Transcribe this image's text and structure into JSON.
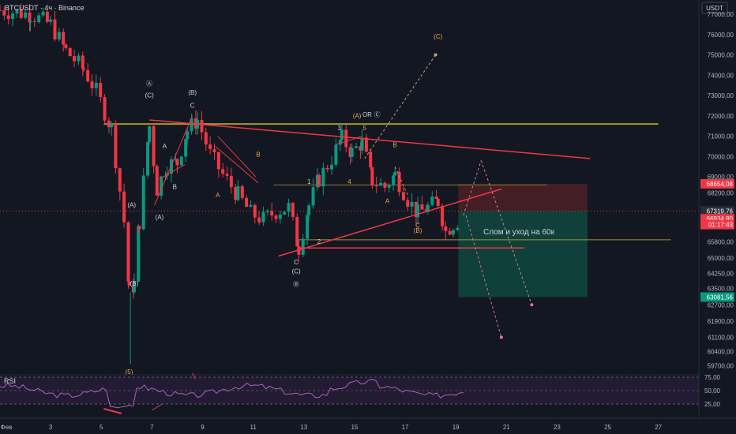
{
  "header": {
    "symbol": "BTCUSDT · 4ч · Binance"
  },
  "price_axis": {
    "currency": "USDT",
    "ticks": [
      "77000,00",
      "76000,00",
      "75000,00",
      "74000,00",
      "73000,00",
      "72000,00",
      "71000,00",
      "70000,00",
      "69000,00",
      "68200,00",
      "65800,00",
      "65000,00",
      "64250,00",
      "63500,00",
      "62700,00",
      "61900,00",
      "61100,00",
      "60400,00",
      "59700,00"
    ],
    "tick_values": [
      77000,
      76000,
      75000,
      74000,
      73000,
      72000,
      71000,
      70000,
      69000,
      68200,
      65800,
      65000,
      64250,
      63500,
      62700,
      61900,
      61100,
      60400,
      59700
    ],
    "badges": [
      {
        "text": "68654,08",
        "value": 68654,
        "color": "#f23645"
      },
      {
        "text": "67319,76",
        "value": 67320,
        "color": "#2a2e39"
      },
      {
        "text": "66934,80",
        "value": 66935,
        "color": "#f23645"
      },
      {
        "text": "01:17:43",
        "value": 66650,
        "color": "#f23645"
      },
      {
        "text": "63081,56",
        "value": 63082,
        "color": "#089981"
      }
    ]
  },
  "time_axis": {
    "labels": [
      "Фев",
      "3",
      "5",
      "7",
      "9",
      "11",
      "13",
      "15",
      "17",
      "19",
      "21",
      "23",
      "25",
      "27"
    ],
    "day_values": [
      1,
      3,
      5,
      7,
      9,
      11,
      13,
      15,
      17,
      19,
      21,
      23,
      25,
      27
    ]
  },
  "rsi": {
    "label": "RSI",
    "ticks": [
      "75,00",
      "50,00",
      "25,00"
    ],
    "tick_values": [
      75,
      50,
      25
    ]
  },
  "wave_labels": [
    {
      "text": "Ⓐ",
      "day": 6.9,
      "price": 73480,
      "color": "#d1d4dc"
    },
    {
      "text": "(C)",
      "day": 6.9,
      "price": 72900,
      "color": "#d1d4dc"
    },
    {
      "text": "(B)",
      "day": 8.6,
      "price": 73050,
      "color": "#d1d4dc"
    },
    {
      "text": "C",
      "day": 8.6,
      "price": 72400,
      "color": "#d1d4dc"
    },
    {
      "text": "A",
      "day": 7.5,
      "price": 70400,
      "color": "#d1d4dc"
    },
    {
      "text": "B",
      "day": 7.9,
      "price": 68400,
      "color": "#d1d4dc"
    },
    {
      "text": "(A)",
      "day": 6.2,
      "price": 67500,
      "color": "#d1d4dc"
    },
    {
      "text": "(A)",
      "day": 7.3,
      "price": 66900,
      "color": "#d1d4dc"
    },
    {
      "text": "(B)",
      "day": 6.3,
      "price": 63650,
      "color": "#d1d4dc"
    },
    {
      "text": "(5)",
      "day": 6.1,
      "price": 59300,
      "color": "#f0a04b"
    },
    {
      "text": "A",
      "day": 9.6,
      "price": 68000,
      "color": "#f0a04b"
    },
    {
      "text": "B",
      "day": 11.2,
      "price": 70000,
      "color": "#f0a04b"
    },
    {
      "text": "C",
      "day": 12.7,
      "price": 64700,
      "color": "#d1d4dc"
    },
    {
      "text": "(C)",
      "day": 12.7,
      "price": 64250,
      "color": "#d1d4dc"
    },
    {
      "text": "Ⓑ",
      "day": 12.7,
      "price": 63600,
      "color": "#d1d4dc"
    },
    {
      "text": "1",
      "day": 13.2,
      "price": 68650,
      "color": "#d1d4dc"
    },
    {
      "text": "2",
      "day": 13.6,
      "price": 65700,
      "color": "#d1d4dc"
    },
    {
      "text": "3",
      "day": 14.4,
      "price": 71300,
      "color": "#d1d4dc"
    },
    {
      "text": "4",
      "day": 14.8,
      "price": 68650,
      "color": "#f0a04b"
    },
    {
      "text": "5",
      "day": 15.4,
      "price": 71300,
      "color": "#f0a04b"
    },
    {
      "text": "(A)",
      "day": 15.1,
      "price": 71900,
      "color": "#f0a04b"
    },
    {
      "text": "OR",
      "day": 15.5,
      "price": 71950,
      "color": "#d1d4dc"
    },
    {
      "text": "Ⓒ",
      "day": 15.9,
      "price": 71950,
      "color": "#d1d4dc"
    },
    {
      "text": "B",
      "day": 16.6,
      "price": 70450,
      "color": "#f0a04b"
    },
    {
      "text": "A",
      "day": 16.3,
      "price": 67700,
      "color": "#f0a04b"
    },
    {
      "text": "C",
      "day": 17.5,
      "price": 66500,
      "color": "#f0a04b"
    },
    {
      "text": "(B)",
      "day": 17.5,
      "price": 66250,
      "color": "#f0a04b"
    },
    {
      "text": "(C)",
      "day": 18.3,
      "price": 75800,
      "color": "#f0a04b"
    }
  ],
  "annotation": {
    "text": "Слом и уход на 60к"
  },
  "colors": {
    "up": "#089981",
    "down": "#f23645",
    "level": "#9c8d1f",
    "trend": "#f23645",
    "tp_zone": "#10453d",
    "sl_zone": "#4a1f26",
    "background": "#131722"
  },
  "chart_data": {
    "type": "candlestick",
    "x_unit": "February day",
    "y_unit": "USDT",
    "xlim": [
      1.0,
      28.6
    ],
    "ylim": [
      59450,
      77700
    ],
    "grid": false,
    "candles_close_approx": [
      {
        "day": 1.0,
        "price": 77200
      },
      {
        "day": 2.2,
        "price": 77000
      },
      {
        "day": 3.0,
        "price": 76500
      },
      {
        "day": 3.6,
        "price": 75200
      },
      {
        "day": 4.3,
        "price": 74300
      },
      {
        "day": 4.8,
        "price": 73200
      },
      {
        "day": 5.4,
        "price": 71400
      },
      {
        "day": 5.9,
        "price": 66800
      },
      {
        "day": 6.1,
        "price": 63300
      },
      {
        "day": 6.3,
        "price": 63700
      },
      {
        "day": 6.5,
        "price": 66800
      },
      {
        "day": 6.9,
        "price": 71500
      },
      {
        "day": 7.2,
        "price": 68400
      },
      {
        "day": 7.6,
        "price": 69600
      },
      {
        "day": 8.0,
        "price": 69700
      },
      {
        "day": 8.4,
        "price": 71300
      },
      {
        "day": 8.8,
        "price": 71800
      },
      {
        "day": 9.3,
        "price": 70100
      },
      {
        "day": 9.8,
        "price": 69100
      },
      {
        "day": 10.4,
        "price": 68100
      },
      {
        "day": 10.9,
        "price": 67200
      },
      {
        "day": 11.4,
        "price": 66900
      },
      {
        "day": 11.9,
        "price": 67300
      },
      {
        "day": 12.4,
        "price": 67500
      },
      {
        "day": 12.8,
        "price": 65500
      },
      {
        "day": 13.2,
        "price": 67600
      },
      {
        "day": 13.6,
        "price": 68900
      },
      {
        "day": 14.1,
        "price": 69900
      },
      {
        "day": 14.5,
        "price": 70900
      },
      {
        "day": 14.9,
        "price": 70200
      },
      {
        "day": 15.3,
        "price": 70700
      },
      {
        "day": 15.7,
        "price": 68800
      },
      {
        "day": 16.2,
        "price": 68500
      },
      {
        "day": 16.6,
        "price": 69100
      },
      {
        "day": 17.1,
        "price": 67900
      },
      {
        "day": 17.5,
        "price": 67200
      },
      {
        "day": 17.9,
        "price": 67500
      },
      {
        "day": 18.3,
        "price": 67800
      },
      {
        "day": 18.6,
        "price": 66300
      },
      {
        "day": 18.9,
        "price": 66700
      },
      {
        "day": 19.2,
        "price": 66935
      }
    ],
    "levels": [
      {
        "name": "upper",
        "price": 71600
      },
      {
        "name": "lower",
        "price": 65900
      },
      {
        "name": "mid",
        "price": 68600
      }
    ],
    "position": {
      "entry": 67320,
      "stop": 68654,
      "target": 63082,
      "from_day": 19.1,
      "to_day": 24.2
    },
    "projections": [
      {
        "kind": "up",
        "from_day": 15.4,
        "from": 69900,
        "to_day": 18.2,
        "to": 75000
      },
      {
        "kind": "down",
        "from_day": 19.4,
        "from": 67100,
        "to_day": 20.8,
        "to": 61100
      },
      {
        "kind": "alt",
        "from_day": 20.0,
        "from": 69800,
        "to_day": 22.0,
        "to": 62700
      }
    ],
    "rsi_series_note": "oscillates 25–75"
  }
}
